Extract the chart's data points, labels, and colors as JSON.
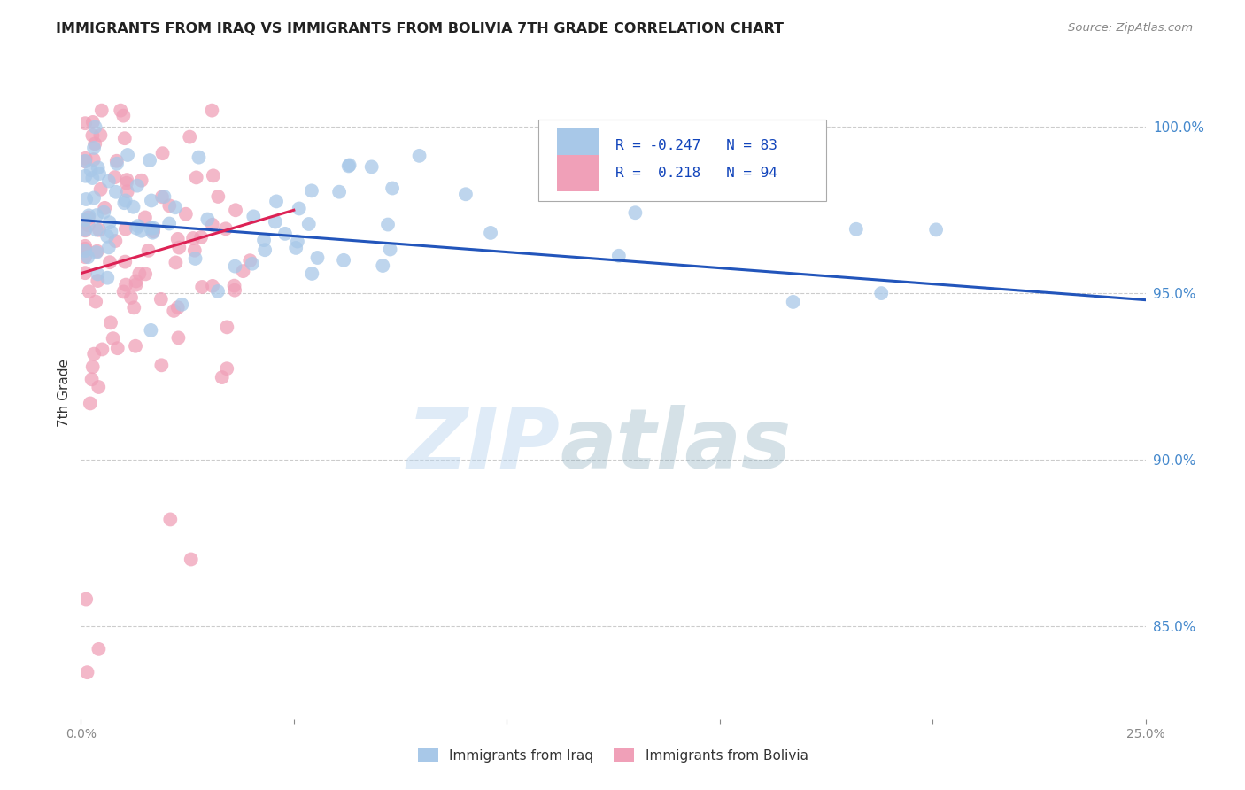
{
  "title": "IMMIGRANTS FROM IRAQ VS IMMIGRANTS FROM BOLIVIA 7TH GRADE CORRELATION CHART",
  "source": "Source: ZipAtlas.com",
  "ylabel": "7th Grade",
  "ylabel_right_labels": [
    "100.0%",
    "95.0%",
    "90.0%",
    "85.0%"
  ],
  "ylabel_right_values": [
    1.0,
    0.95,
    0.9,
    0.85
  ],
  "xmin": 0.0,
  "xmax": 0.25,
  "ymin": 0.822,
  "ymax": 1.018,
  "watermark_zip": "ZIP",
  "watermark_atlas": "atlas",
  "legend_iraq_r": "-0.247",
  "legend_iraq_n": "83",
  "legend_bolivia_r": "0.218",
  "legend_bolivia_n": "94",
  "iraq_color": "#a8c8e8",
  "bolivia_color": "#f0a0b8",
  "iraq_line_color": "#2255bb",
  "bolivia_line_color": "#dd2255",
  "grid_color": "#cccccc",
  "background_color": "#ffffff",
  "iraq_line_x0": 0.0,
  "iraq_line_y0": 0.972,
  "iraq_line_x1": 0.25,
  "iraq_line_y1": 0.948,
  "bolivia_line_x0": 0.0,
  "bolivia_line_y0": 0.956,
  "bolivia_line_x1": 0.05,
  "bolivia_line_y1": 0.975,
  "xtick_positions": [
    0.0,
    0.05,
    0.1,
    0.15,
    0.2,
    0.25
  ],
  "xtick_labels": [
    "0.0%",
    "",
    "",
    "",
    "",
    "25.0%"
  ]
}
